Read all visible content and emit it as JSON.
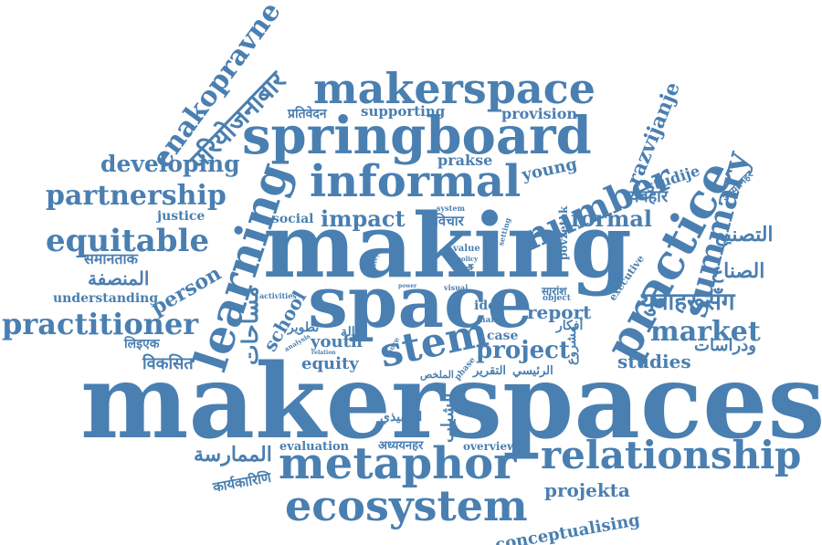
{
  "color": "#4a7fb1",
  "words": [
    {
      "text": "makerspaces"
    },
    {
      "text": "making"
    },
    {
      "text": "space"
    },
    {
      "text": "springboard"
    },
    {
      "text": "makerspace"
    },
    {
      "text": "informal"
    },
    {
      "text": "learning"
    },
    {
      "text": "metaphor"
    },
    {
      "text": "ecosystem"
    },
    {
      "text": "relationship"
    },
    {
      "text": "number"
    },
    {
      "text": "practice"
    },
    {
      "text": "summary"
    },
    {
      "text": "stem"
    },
    {
      "text": "enakopravne"
    },
    {
      "text": "परियोजनाबार"
    },
    {
      "text": "partnership"
    },
    {
      "text": "equitable"
    },
    {
      "text": "practitioner"
    },
    {
      "text": "developing"
    },
    {
      "text": "market"
    },
    {
      "text": "project"
    },
    {
      "text": "युवाहरूसँग"
    },
    {
      "text": "razvijanje"
    },
    {
      "text": "impact"
    },
    {
      "text": "formal"
    },
    {
      "text": "person"
    },
    {
      "text": "school"
    },
    {
      "text": "studies"
    },
    {
      "text": "equity"
    },
    {
      "text": "youth"
    },
    {
      "text": "report"
    },
    {
      "text": "idea"
    },
    {
      "text": "case"
    },
    {
      "text": "young"
    },
    {
      "text": "prakse"
    },
    {
      "text": "provision"
    },
    {
      "text": "supporting"
    },
    {
      "text": "social"
    },
    {
      "text": "justice"
    },
    {
      "text": "understanding"
    },
    {
      "text": "evaluation"
    },
    {
      "text": "overview"
    },
    {
      "text": "conceptualising"
    },
    {
      "text": "projekta"
    },
    {
      "text": "studije"
    },
    {
      "text": "व्यवहार"
    },
    {
      "text": "विचार"
    },
    {
      "text": "प्रतिवेदन"
    },
    {
      "text": "समानताक"
    },
    {
      "text": "लिइएक"
    },
    {
      "text": "विकसित"
    },
    {
      "text": "कार्यकारिणि"
    },
    {
      "text": "अध्ययनहर"
    },
    {
      "text": "अध्ययनहर"
    },
    {
      "text": "सारांश"
    },
    {
      "text": "गर्दै"
    },
    {
      "text": "المنصفة"
    },
    {
      "text": "الممارسة"
    },
    {
      "text": "التصنيع"
    },
    {
      "text": "الصناع"
    },
    {
      "text": "ودراسات"
    },
    {
      "text": "التنفيذي"
    },
    {
      "text": "الرئيسي"
    },
    {
      "text": "التقرير"
    },
    {
      "text": "أفكار"
    },
    {
      "text": "مساحات"
    },
    {
      "text": "الشباب"
    },
    {
      "text": "حالة"
    },
    {
      "text": "تطوير"
    },
    {
      "text": "مشروع"
    },
    {
      "text": "الملخص"
    },
    {
      "text": "executive"
    },
    {
      "text": "povzetek"
    },
    {
      "text": "value"
    },
    {
      "text": "policy"
    },
    {
      "text": "system"
    },
    {
      "text": "main"
    },
    {
      "text": "object"
    },
    {
      "text": "visual"
    },
    {
      "text": "power"
    },
    {
      "text": "activities"
    },
    {
      "text": "analysis"
    },
    {
      "text": "relation"
    },
    {
      "text": "more"
    },
    {
      "text": "phase"
    },
    {
      "text": "setting"
    },
    {
      "text": "convey"
    },
    {
      "text": "data"
    }
  ]
}
